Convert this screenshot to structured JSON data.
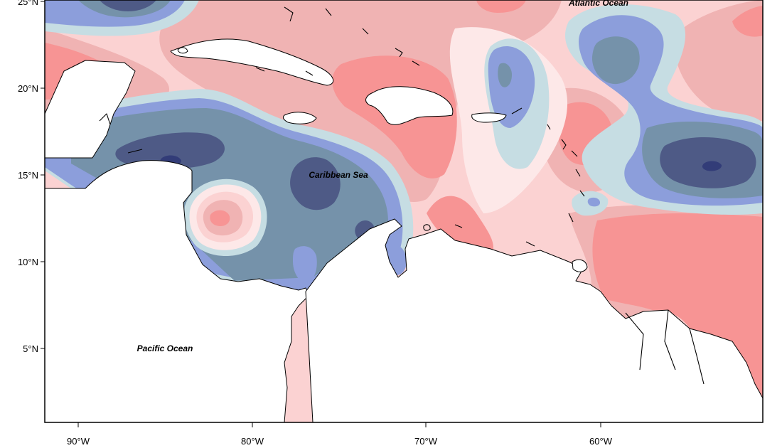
{
  "map": {
    "latitude_ticks": [
      {
        "label": "25°N",
        "value": 25
      },
      {
        "label": "20°N",
        "value": 20
      },
      {
        "label": "15°N",
        "value": 15
      },
      {
        "label": "10°N",
        "value": 10
      },
      {
        "label": "5°N",
        "value": 5
      }
    ],
    "longitude_ticks": [
      {
        "label": "90°W",
        "value": -90
      },
      {
        "label": "80°W",
        "value": -80
      },
      {
        "label": "70°W",
        "value": -70
      },
      {
        "label": "60°W",
        "value": -60
      }
    ],
    "places": {
      "atlantic": "Atlantic Ocean",
      "caribbean": "Caribbean Sea",
      "pacific": "Pacific Ocean"
    },
    "colors": {
      "deep_blue": "#4e5a86",
      "slate_blue": "#7592aa",
      "mid_blue": "#8c9edb",
      "pale_blue": "#c6dde3",
      "very_pale_pink": "#fde8e8",
      "pale_pink": "#fbd2d2",
      "light_red": "#f0b3b3",
      "red": "#f79494",
      "land": "#ffffff"
    }
  }
}
